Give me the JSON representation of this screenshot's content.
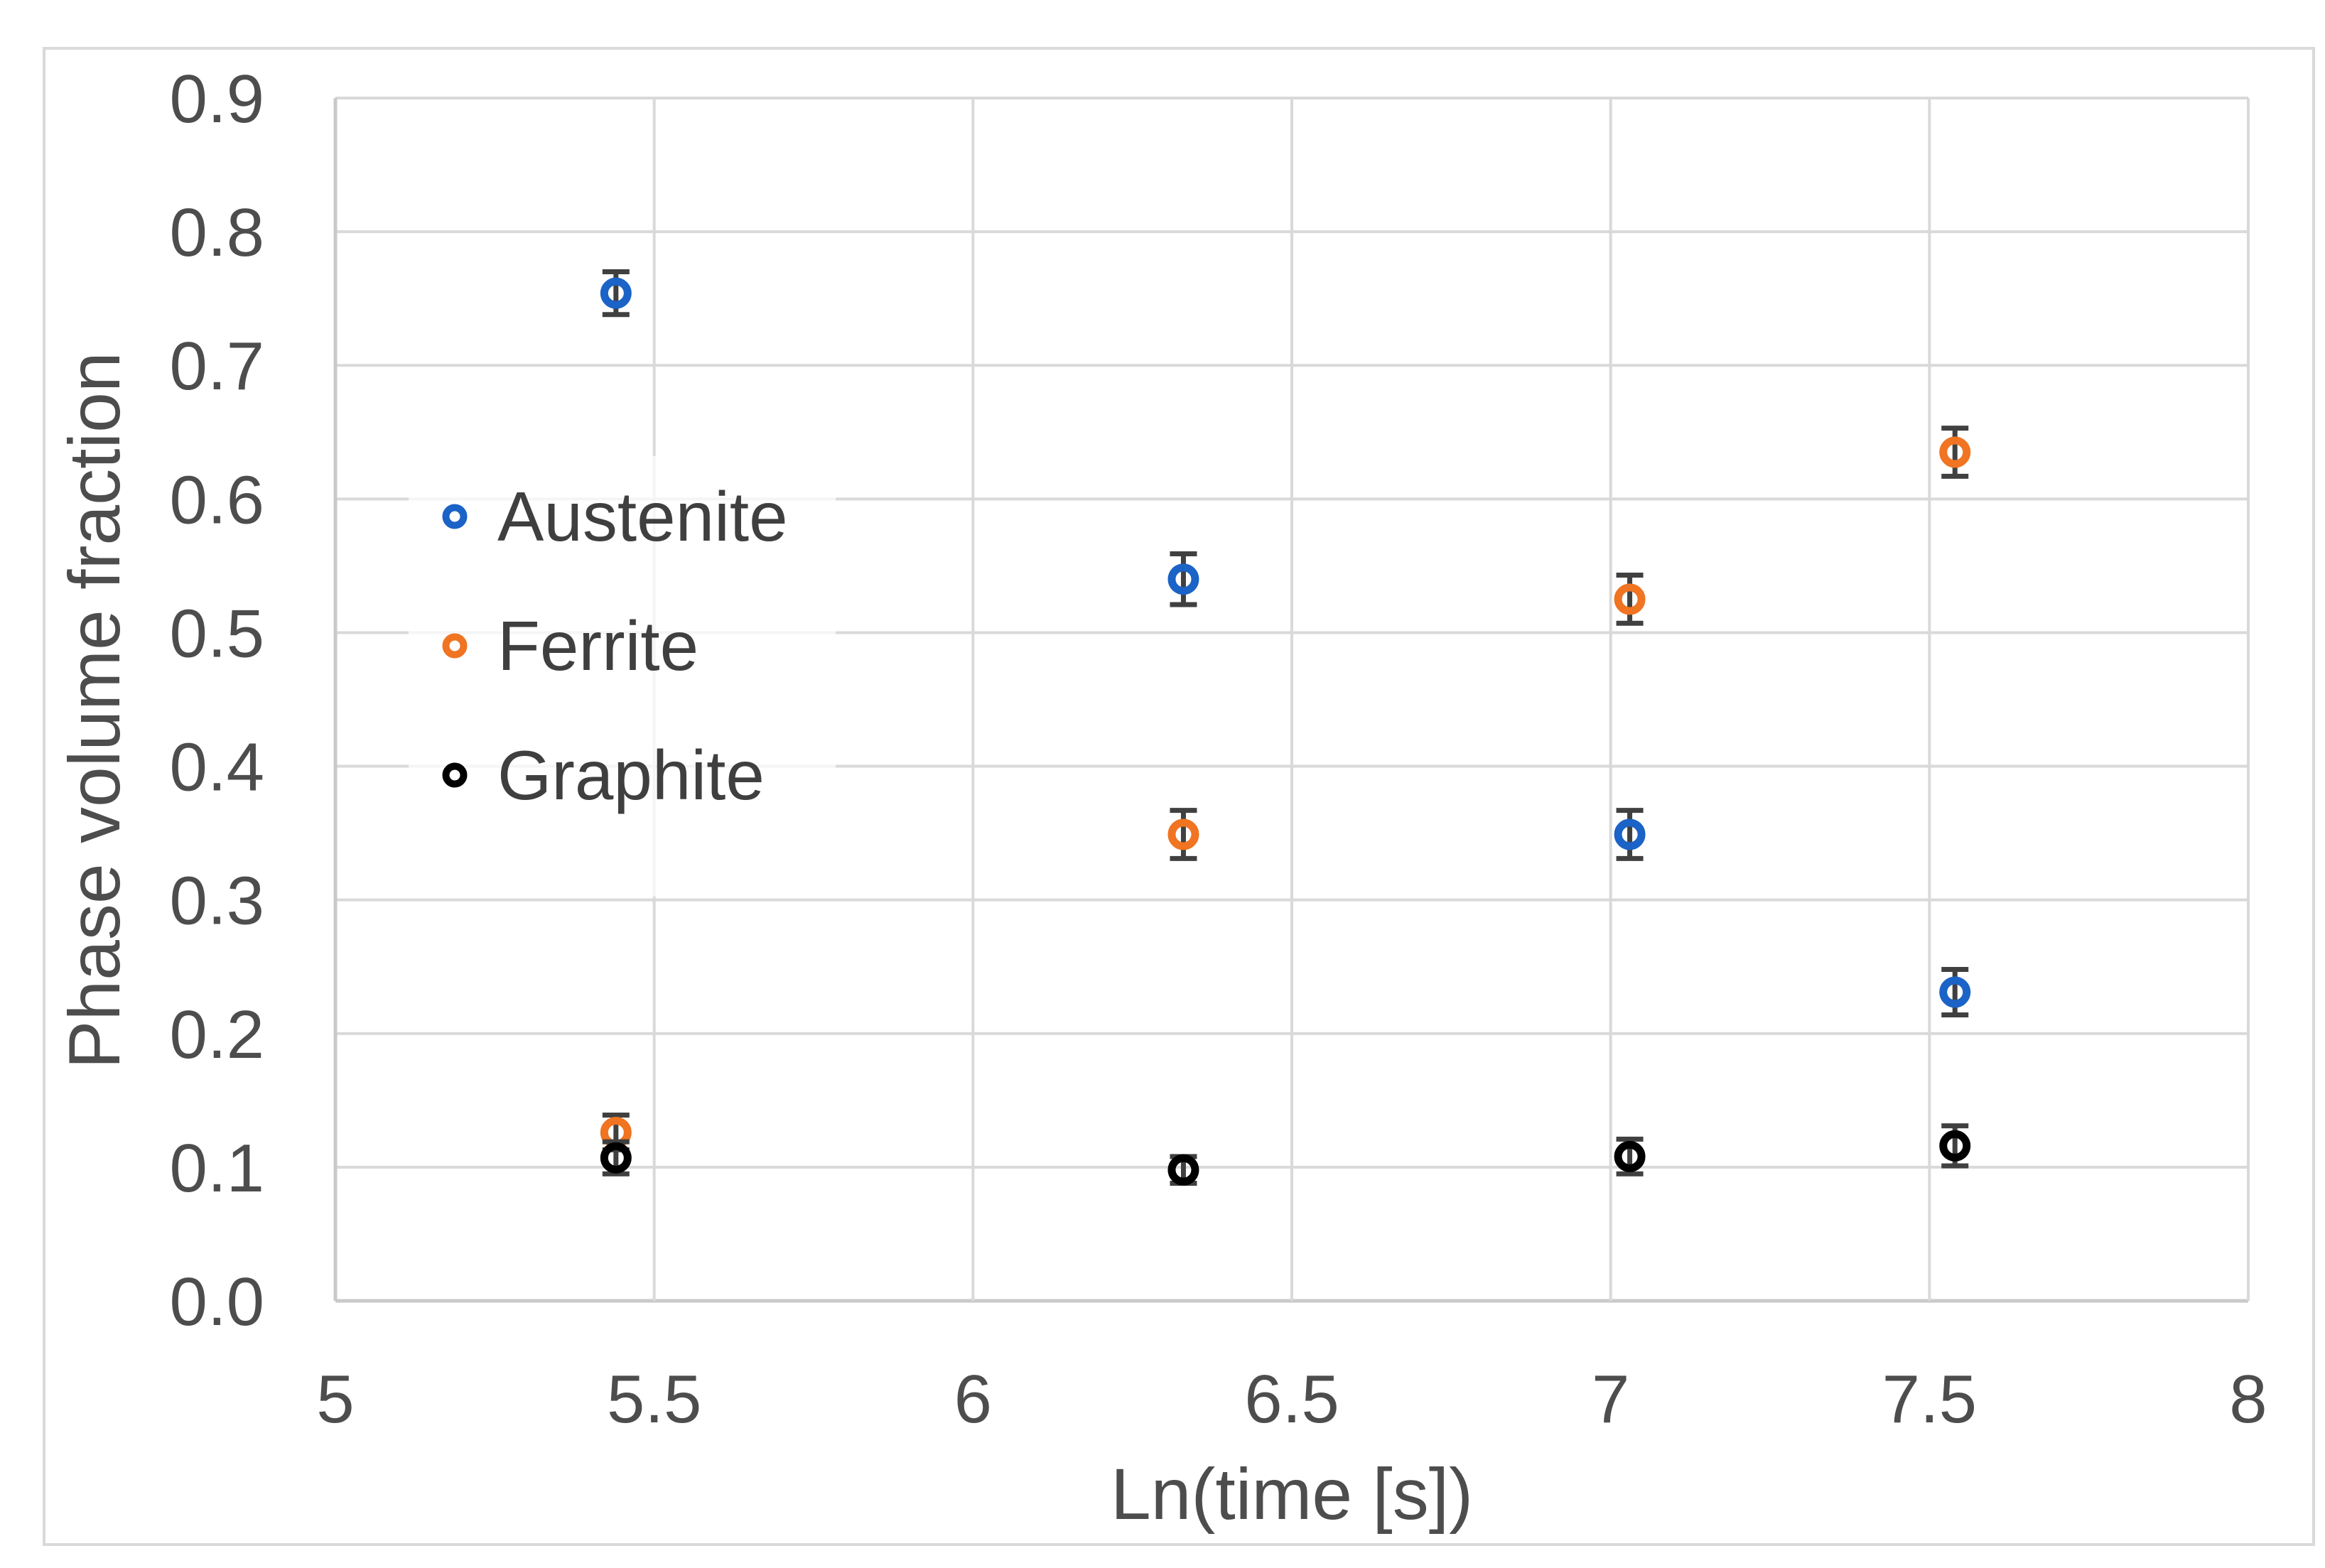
{
  "figure": {
    "background_color": "#FFFFFF",
    "frame_border_color": "#D9D9D9"
  },
  "chart_data": {
    "type": "scatter",
    "title": "",
    "xlabel": "Ln(time [s])",
    "ylabel": "Phase volume fraction",
    "xlim": [
      5,
      8
    ],
    "ylim": [
      0.0,
      0.9
    ],
    "xticks": [
      5,
      5.5,
      6,
      6.5,
      7,
      7.5,
      8
    ],
    "yticks": [
      0.0,
      0.1,
      0.2,
      0.3,
      0.4,
      0.5,
      0.6,
      0.7,
      0.8,
      0.9
    ],
    "grid": true,
    "gridline_color": "#D9D9D9",
    "axis_line_color": "#C9C9C9",
    "tick_label_color": "#4D4D4D",
    "axis_title_color": "#4D4D4D",
    "legend_text_color": "#3F3F3F",
    "error_bar_color": "#404040",
    "legend": {
      "position": "inside-upper-left",
      "background": "rgba(255,255,255,0.72)"
    },
    "series": [
      {
        "name": "Austenite",
        "color": "#1B63C6",
        "marker": "open-circle",
        "points": [
          {
            "x": 5.44,
            "y": 0.754,
            "err": 0.016
          },
          {
            "x": 6.33,
            "y": 0.54,
            "err": 0.019
          },
          {
            "x": 7.03,
            "y": 0.349,
            "err": 0.018
          },
          {
            "x": 7.54,
            "y": 0.231,
            "err": 0.017
          }
        ]
      },
      {
        "name": "Ferrite",
        "color": "#F07421",
        "marker": "open-circle",
        "points": [
          {
            "x": 5.44,
            "y": 0.126,
            "err": 0.013
          },
          {
            "x": 6.33,
            "y": 0.349,
            "err": 0.018
          },
          {
            "x": 7.03,
            "y": 0.525,
            "err": 0.018
          },
          {
            "x": 7.54,
            "y": 0.635,
            "err": 0.018
          }
        ]
      },
      {
        "name": "Graphite",
        "color": "#000000",
        "marker": "open-circle",
        "points": [
          {
            "x": 5.44,
            "y": 0.107,
            "err": 0.012
          },
          {
            "x": 6.33,
            "y": 0.098,
            "err": 0.01
          },
          {
            "x": 7.03,
            "y": 0.108,
            "err": 0.013
          },
          {
            "x": 7.54,
            "y": 0.116,
            "err": 0.015
          }
        ]
      }
    ]
  }
}
